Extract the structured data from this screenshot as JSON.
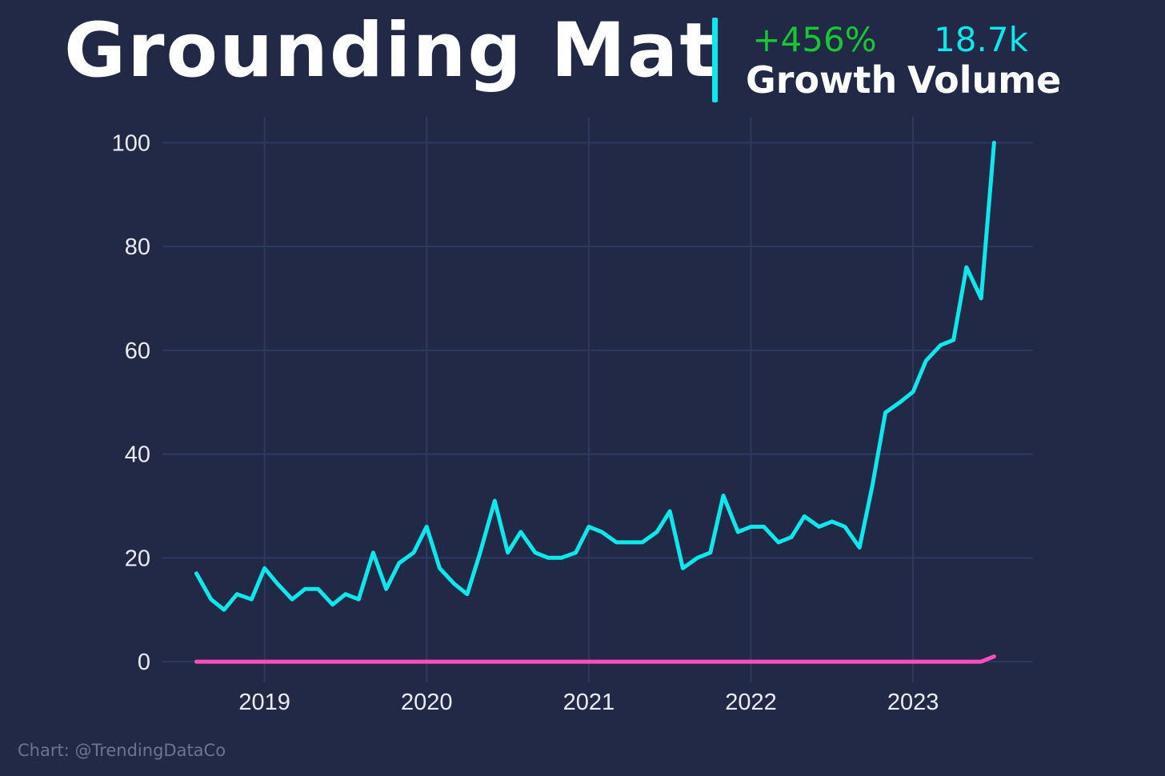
{
  "header": {
    "title": "Grounding Mat",
    "growth_value": "+456%",
    "growth_label": "Growth",
    "volume_value": "18.7k",
    "volume_label": "Volume"
  },
  "colors": {
    "background": "#212946",
    "grid": "#2c3a62",
    "primary_series": "#0ce8ec",
    "secondary_series": "#ff4cbe",
    "growth_value": "#16c832",
    "volume_value": "#0ce8ec",
    "divider": "#0ce8ec"
  },
  "credit": "Chart: @TrendingDataCo",
  "chart_data": {
    "type": "line",
    "title": "",
    "xlabel": "",
    "ylabel": "",
    "x_tick_labels": [
      "2019",
      "2020",
      "2021",
      "2022",
      "2023"
    ],
    "x_tick_values": [
      2019.0,
      2020.0,
      2021.0,
      2022.0,
      2023.0
    ],
    "y_tick_labels": [
      "0",
      "20",
      "40",
      "60",
      "80",
      "100"
    ],
    "y_tick_values": [
      0,
      20,
      40,
      60,
      80,
      100
    ],
    "xlim": [
      2018.37,
      2023.74
    ],
    "ylim": [
      -4,
      105
    ],
    "grid": true,
    "legend": "none",
    "series": [
      {
        "color": "#0ce8ec",
        "x": [
          2018.58,
          2018.67,
          2018.75,
          2018.83,
          2018.92,
          2019.0,
          2019.08,
          2019.17,
          2019.25,
          2019.33,
          2019.42,
          2019.5,
          2019.58,
          2019.67,
          2019.75,
          2019.83,
          2019.92,
          2020.0,
          2020.08,
          2020.17,
          2020.25,
          2020.33,
          2020.42,
          2020.5,
          2020.58,
          2020.67,
          2020.75,
          2020.83,
          2020.92,
          2021.0,
          2021.08,
          2021.17,
          2021.25,
          2021.33,
          2021.42,
          2021.5,
          2021.58,
          2021.67,
          2021.75,
          2021.83,
          2021.92,
          2022.0,
          2022.08,
          2022.17,
          2022.25,
          2022.33,
          2022.42,
          2022.5,
          2022.58,
          2022.67,
          2022.75,
          2022.83,
          2022.92,
          2023.0,
          2023.08,
          2023.17,
          2023.25,
          2023.33,
          2023.42,
          2023.5
        ],
        "y": [
          17,
          12,
          10,
          13,
          12,
          18,
          15,
          12,
          14,
          14,
          11,
          13,
          12,
          21,
          14,
          19,
          21,
          26,
          18,
          15,
          13,
          21,
          31,
          21,
          25,
          21,
          20,
          20,
          21,
          26,
          25,
          23,
          23,
          23,
          25,
          29,
          18,
          20,
          21,
          32,
          25,
          26,
          26,
          23,
          24,
          28,
          26,
          27,
          26,
          22,
          34,
          48,
          50,
          52,
          58,
          61,
          62,
          76,
          70,
          100
        ]
      },
      {
        "color": "#ff4cbe",
        "x": [
          2018.58,
          2023.42,
          2023.5
        ],
        "y": [
          0,
          0,
          1
        ]
      }
    ]
  }
}
